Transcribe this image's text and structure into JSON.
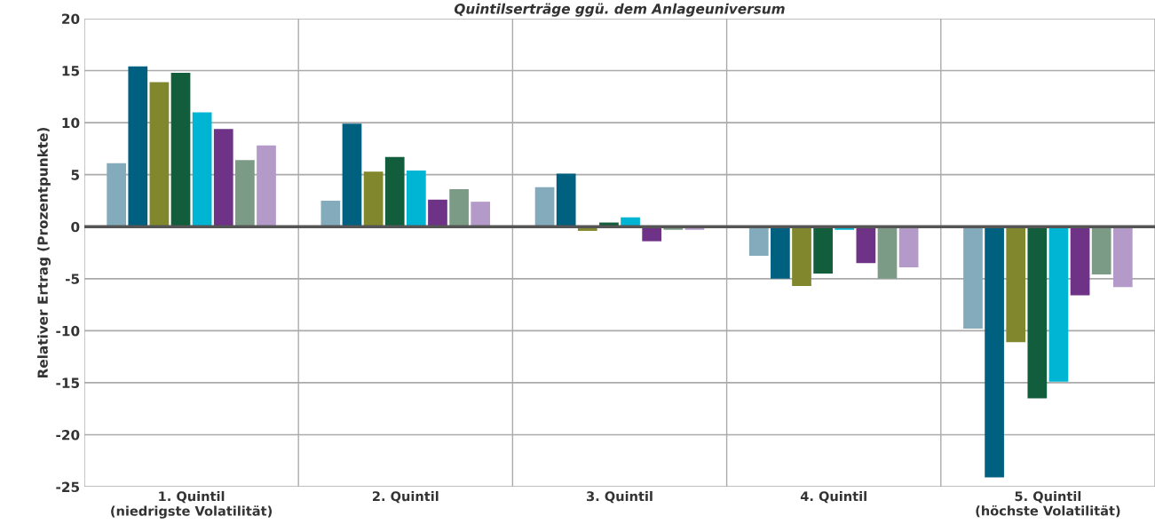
{
  "chart_data": {
    "type": "bar",
    "title": "Quintilserträge ggü. dem Anlageuniversum",
    "ylabel": "Relativer Ertrag (Prozentpunkte)",
    "categories": [
      "1. Quintil\n(niedrigste Volatilität)",
      "2. Quintil",
      "3. Quintil",
      "4. Quintil",
      "5. Quintil\n(höchste Volatilität)"
    ],
    "series": [
      {
        "color": "#84abbb",
        "values": [
          6.1,
          2.5,
          3.8,
          -2.8,
          -9.8
        ]
      },
      {
        "color": "#006080",
        "values": [
          15.4,
          9.9,
          5.1,
          -5.0,
          -24.1
        ]
      },
      {
        "color": "#80872c",
        "values": [
          13.9,
          5.3,
          -0.4,
          -5.7,
          -11.1
        ]
      },
      {
        "color": "#125e3c",
        "values": [
          14.8,
          6.7,
          0.4,
          -4.5,
          -16.5
        ]
      },
      {
        "color": "#00b5d3",
        "values": [
          11.0,
          5.4,
          0.9,
          -0.3,
          -14.9
        ]
      },
      {
        "color": "#6e3287",
        "values": [
          9.4,
          2.6,
          -1.4,
          -3.5,
          -6.6
        ]
      },
      {
        "color": "#7c9b87",
        "values": [
          6.4,
          3.6,
          -0.3,
          -5.0,
          -4.6
        ]
      },
      {
        "color": "#b49ac9",
        "values": [
          7.8,
          2.4,
          -0.3,
          -3.9,
          -5.8
        ]
      }
    ],
    "ylim": [
      -25,
      20
    ],
    "yticks": [
      -25,
      -20,
      -15,
      -10,
      -5,
      0,
      5,
      10,
      15,
      20
    ],
    "grid": true,
    "legend": false,
    "ref_lines": [
      {
        "axis": "y",
        "value": 0,
        "color": "#555555"
      }
    ]
  }
}
